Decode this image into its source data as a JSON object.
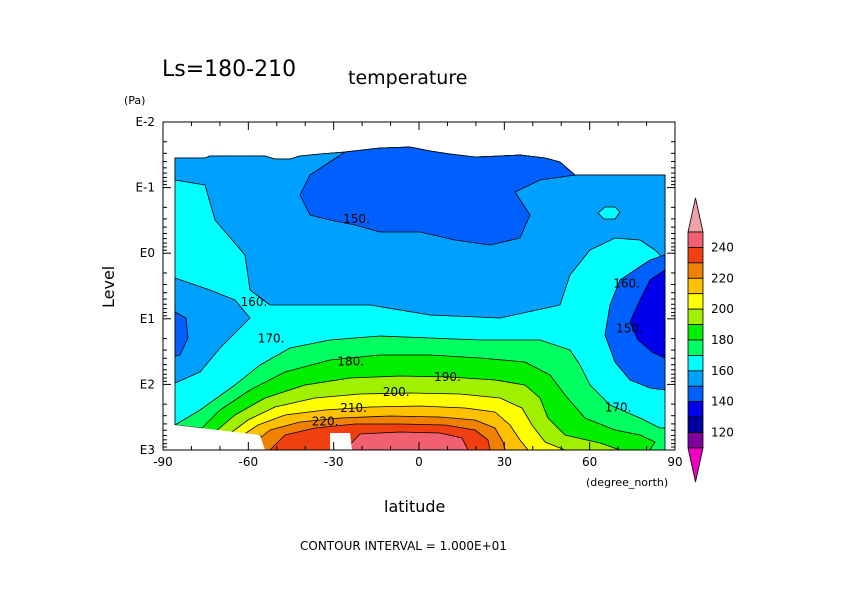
{
  "chart_data": {
    "type": "contour",
    "title": "temperature",
    "subtitle": "Ls=180-210",
    "xlabel": "latitude",
    "xunit": "(degree_north)",
    "ylabel": "Level",
    "yunit": "(Pa)",
    "footer": "CONTOUR INTERVAL = 1.000E+01",
    "x_ticks": [
      "-90",
      "-60",
      "-30",
      "0",
      "30",
      "60",
      "90"
    ],
    "x_tick_values": [
      -90,
      -60,
      -30,
      0,
      30,
      60,
      90
    ],
    "y_ticks": [
      "E-2",
      "E-1",
      "E0",
      "E1",
      "E2",
      "E3"
    ],
    "y_tick_values": [
      0.01,
      0.1,
      1,
      10,
      100,
      1000
    ],
    "xlim": [
      -90,
      90
    ],
    "ylim_pa": [
      1000,
      0.01
    ],
    "y_scale": "log",
    "contour_interval": 10,
    "contour_labels": [
      {
        "text": "150.",
        "lat": -22,
        "level_pa": 0.3
      },
      {
        "text": "160.",
        "lat": -58,
        "level_pa": 5.5
      },
      {
        "text": "160.",
        "lat": 73,
        "level_pa": 2.9
      },
      {
        "text": "150.",
        "lat": 74,
        "level_pa": 14
      },
      {
        "text": "170.",
        "lat": -52,
        "level_pa": 20
      },
      {
        "text": "180.",
        "lat": -24,
        "level_pa": 45
      },
      {
        "text": "190.",
        "lat": 10,
        "level_pa": 77
      },
      {
        "text": "200.",
        "lat": -8,
        "level_pa": 130
      },
      {
        "text": "210.",
        "lat": -23,
        "level_pa": 230
      },
      {
        "text": "220.",
        "lat": -33,
        "level_pa": 370
      },
      {
        "text": "170.",
        "lat": 70,
        "level_pa": 225
      }
    ],
    "colorbar": {
      "labels": [
        "240",
        "220",
        "200",
        "180",
        "160",
        "140",
        "120"
      ],
      "label_values": [
        240,
        220,
        200,
        180,
        160,
        140,
        120
      ],
      "levels": [
        250,
        240,
        230,
        220,
        210,
        200,
        190,
        180,
        170,
        160,
        150,
        140,
        130,
        120,
        110
      ],
      "colors": [
        "#f0a0a8",
        "#f06070",
        "#f04010",
        "#f08000",
        "#ffc000",
        "#ffff00",
        "#a0f000",
        "#00ee00",
        "#00ff60",
        "#00ffff",
        "#00a0ff",
        "#0060ff",
        "#0000ee",
        "#0000a0",
        "#8000a0",
        "#f000c0"
      ]
    },
    "colors": {
      "c120": "#8000a0",
      "c130": "#0000a0",
      "c140": "#0000ee",
      "c150": "#0060ff",
      "c160": "#00a0ff",
      "c170": "#00ffff",
      "c180": "#00ff60",
      "c190": "#00ee00",
      "c200": "#a0f000",
      "c210": "#ffff00",
      "c220": "#ffc000",
      "c230": "#f08000",
      "c240": "#f04010",
      "c250": "#f06070"
    }
  }
}
